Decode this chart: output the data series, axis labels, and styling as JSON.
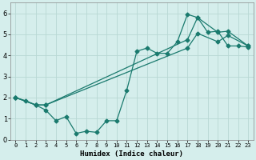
{
  "xlabel": "Humidex (Indice chaleur)",
  "bg_color": "#d5eeec",
  "line_color": "#1a7a6e",
  "grid_color": "#b8d8d4",
  "xlim": [
    -0.5,
    23.5
  ],
  "ylim": [
    0,
    6.5
  ],
  "xticks": [
    0,
    1,
    2,
    3,
    4,
    5,
    6,
    7,
    8,
    9,
    10,
    11,
    12,
    13,
    14,
    15,
    16,
    17,
    18,
    19,
    20,
    21,
    22,
    23
  ],
  "yticks": [
    0,
    1,
    2,
    3,
    4,
    5,
    6
  ],
  "line1_x": [
    0,
    1,
    2,
    3,
    4,
    5,
    6,
    7,
    8,
    9,
    10,
    11,
    12,
    13,
    14,
    15,
    16,
    17,
    18,
    19,
    20,
    21,
    22,
    23
  ],
  "line1_y": [
    2.0,
    1.85,
    1.65,
    1.4,
    0.9,
    1.1,
    0.3,
    0.4,
    0.35,
    0.9,
    0.9,
    2.35,
    4.2,
    4.35,
    4.1,
    4.1,
    4.65,
    5.95,
    5.8,
    5.1,
    5.15,
    4.45,
    4.45,
    4.4
  ],
  "line2_x": [
    0,
    2,
    3,
    17,
    18,
    20,
    21,
    23
  ],
  "line2_y": [
    2.0,
    1.65,
    1.65,
    4.75,
    5.8,
    5.1,
    5.15,
    4.45
  ],
  "line3_x": [
    0,
    2,
    3,
    17,
    18,
    20,
    21,
    23
  ],
  "line3_y": [
    2.0,
    1.65,
    1.65,
    4.35,
    5.05,
    4.65,
    4.95,
    4.45
  ]
}
